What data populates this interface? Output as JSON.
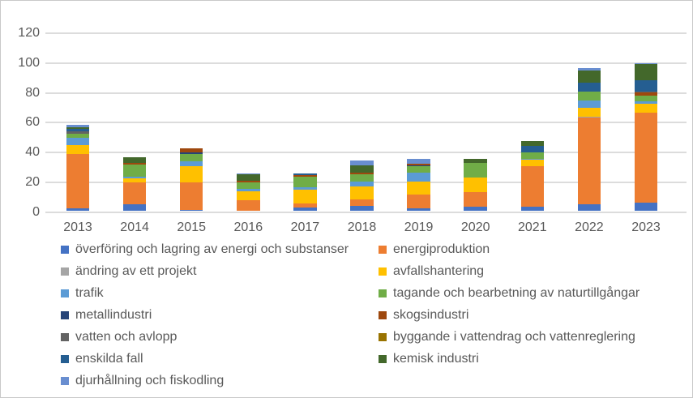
{
  "chart_data": {
    "type": "bar",
    "stacked": true,
    "title": "",
    "xlabel": "",
    "ylabel": "",
    "categories": [
      "2013",
      "2014",
      "2015",
      "2016",
      "2017",
      "2018",
      "2019",
      "2020",
      "2021",
      "2022",
      "2023"
    ],
    "series": [
      {
        "name": "överföring och lagring av energi och substanser",
        "color": "#4472C4",
        "values": [
          1.5,
          4,
          0.5,
          0,
          2,
          3,
          1.5,
          2.5,
          2.5,
          4,
          5
        ]
      },
      {
        "name": "energiproduktion",
        "color": "#ED7D31",
        "values": [
          36.5,
          15,
          18.5,
          7,
          2.5,
          4.5,
          9,
          10,
          27,
          58.5,
          60.5
        ]
      },
      {
        "name": "ändring av ett projekt",
        "color": "#A5A5A5",
        "values": [
          0,
          0,
          0,
          0,
          0,
          0,
          0,
          0,
          0,
          0.5,
          0
        ]
      },
      {
        "name": "avfallshantering",
        "color": "#FFC000",
        "values": [
          6,
          2.5,
          10.5,
          6,
          9.5,
          8.5,
          9,
          9.5,
          4.5,
          6,
          6
        ]
      },
      {
        "name": "trafik",
        "color": "#5B9BD5",
        "values": [
          4.5,
          1,
          3.5,
          1.5,
          1.5,
          3.5,
          6,
          0,
          0.5,
          4.5,
          1.5
        ]
      },
      {
        "name": "tagande och bearbetning av naturtillgångar",
        "color": "#70AD47",
        "values": [
          3,
          8,
          5,
          4.5,
          7,
          5,
          4,
          10,
          4.5,
          6,
          4
        ]
      },
      {
        "name": "metallindustri",
        "color": "#264478",
        "values": [
          0,
          0,
          1,
          0,
          0,
          0,
          1,
          0,
          0,
          0,
          0
        ]
      },
      {
        "name": "skogsindustri",
        "color": "#9E480E",
        "values": [
          0,
          1.5,
          2.5,
          1,
          1,
          1,
          1,
          0,
          0,
          0,
          2
        ]
      },
      {
        "name": "vatten och avlopp",
        "color": "#636363",
        "values": [
          1.5,
          0,
          0,
          0,
          0,
          0,
          0,
          0,
          0,
          0,
          1
        ]
      },
      {
        "name": "byggande i vattendrag och vattenreglering",
        "color": "#997300",
        "values": [
          0,
          0,
          0,
          0,
          0,
          0,
          0,
          0,
          0,
          0,
          0
        ]
      },
      {
        "name": "enskilda fall",
        "color": "#255E91",
        "values": [
          1.5,
          0,
          0,
          0,
          1.5,
          0,
          0,
          0,
          4.5,
          6.5,
          7.5
        ]
      },
      {
        "name": "kemisk industri",
        "color": "#43682B",
        "values": [
          1.5,
          3.5,
          0,
          4,
          0,
          5,
          0,
          2.5,
          3,
          8,
          10.5
        ]
      },
      {
        "name": "djurhållning och fiskodling",
        "color": "#698ED0",
        "values": [
          1.5,
          0,
          0,
          1,
          0,
          3,
          3,
          0,
          0,
          1.5,
          1
        ]
      }
    ],
    "ylim": [
      0,
      120
    ],
    "yticks": [
      0,
      20,
      40,
      60,
      80,
      100,
      120
    ],
    "grid": true,
    "legend_position": "bottom"
  },
  "axis_text_color": "#595959"
}
